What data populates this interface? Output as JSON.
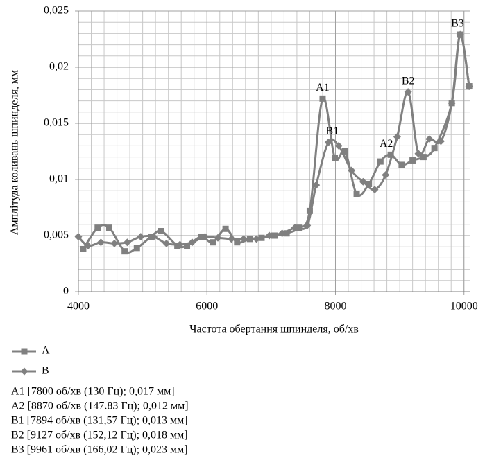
{
  "chart_data": {
    "type": "line",
    "y_label": "Амплітуда коливань шпинделя, мм",
    "x_label": "Частота обертання шпинделя, об/хв",
    "xlim": [
      4000,
      10100
    ],
    "xticks": [
      4000,
      6000,
      8000,
      10000
    ],
    "x_grid_step": 200,
    "ylim": [
      0,
      0.025
    ],
    "yticks": [
      0,
      {
        "value": 0.005,
        "label": "0,005"
      },
      {
        "value": 0.01,
        "label": "0,01"
      },
      {
        "value": 0.015,
        "label": "0,015"
      },
      {
        "value": 0.02,
        "label": "0,02"
      },
      {
        "value": 0.025,
        "label": "0,025"
      }
    ],
    "y_grid_step": 0.001,
    "grid": true,
    "smooth": true,
    "series": [
      {
        "name": "A",
        "color": "#808080",
        "marker": "square",
        "x": [
          4075,
          4300,
          4480,
          4720,
          4910,
          5130,
          5290,
          5540,
          5690,
          5910,
          6090,
          6290,
          6470,
          6670,
          6850,
          7050,
          7240,
          7430,
          7600,
          7800,
          7990,
          8150,
          8330,
          8520,
          8700,
          8860,
          9030,
          9200,
          9370,
          9540,
          9810,
          9940,
          10080
        ],
        "values": [
          0.0038,
          0.0057,
          0.0057,
          0.0036,
          0.0039,
          0.0049,
          0.0054,
          0.0041,
          0.0041,
          0.0049,
          0.0044,
          0.0056,
          0.0044,
          0.0047,
          0.0048,
          0.005,
          0.0052,
          0.0057,
          0.0072,
          0.0172,
          0.0119,
          0.0125,
          0.0087,
          0.0096,
          0.0116,
          0.0122,
          0.0113,
          0.0117,
          0.012,
          0.0128,
          0.0168,
          0.0229,
          0.0183
        ]
      },
      {
        "name": "B",
        "color": "#808080",
        "marker": "diamond",
        "x": [
          4000,
          4150,
          4350,
          4560,
          4760,
          4970,
          5170,
          5370,
          5580,
          5770,
          5970,
          6170,
          6380,
          6570,
          6770,
          6970,
          7170,
          7370,
          7560,
          7700,
          7890,
          8050,
          8250,
          8430,
          8610,
          8780,
          8960,
          9130,
          9290,
          9460,
          9640,
          9810,
          9940,
          10080
        ],
        "values": [
          0.0049,
          0.0041,
          0.0044,
          0.0043,
          0.0044,
          0.0049,
          0.0049,
          0.0043,
          0.0042,
          0.0044,
          0.0049,
          0.0048,
          0.0047,
          0.0047,
          0.0047,
          0.005,
          0.0052,
          0.0057,
          0.0059,
          0.0095,
          0.0133,
          0.013,
          0.0108,
          0.0098,
          0.0091,
          0.0104,
          0.0138,
          0.0178,
          0.0123,
          0.0136,
          0.0134,
          0.0168,
          0.0229,
          0.0183
        ]
      }
    ],
    "annotations": [
      {
        "text": "A1",
        "x": 7800,
        "y": 0.0172
      },
      {
        "text": "B1",
        "x": 7950,
        "y": 0.0133
      },
      {
        "text": "A2",
        "x": 8790,
        "y": 0.0122
      },
      {
        "text": "B2",
        "x": 9130,
        "y": 0.0178
      },
      {
        "text": "B3",
        "x": 9900,
        "y": 0.0229
      }
    ],
    "notes": [
      "A1 [7800 об/хв (130 Гц); 0,017 мм]",
      "A2 [8870 об/хв (147.83 Гц); 0,012 мм]",
      "B1 [7894 об/хв (131,57 Гц); 0,013 мм]",
      "B2 [9127 об/хв (152,12 Гц); 0,018 мм]",
      "B3 [9961 об/хв (166,02 Гц); 0,023 мм]"
    ]
  }
}
